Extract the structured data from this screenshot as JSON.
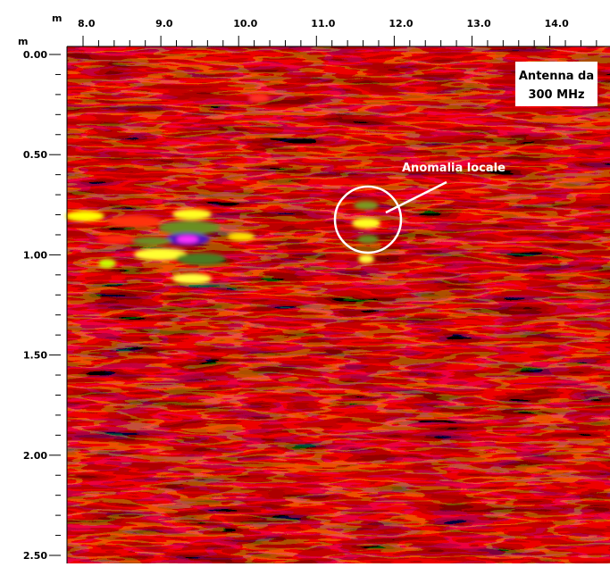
{
  "x_axis": {
    "unit": "m",
    "ticks": [
      "8.0",
      "9.0",
      "10.0",
      "11.0",
      "12.0",
      "13.0",
      "14.0"
    ]
  },
  "y_axis": {
    "unit": "m",
    "ticks": [
      "0.00",
      "0.50",
      "1.00",
      "1.50",
      "2.00",
      "2.50"
    ]
  },
  "antenna_label": {
    "line1": "Antenna da",
    "line2": "300 MHz"
  },
  "annotation": "Anomalia locale"
}
